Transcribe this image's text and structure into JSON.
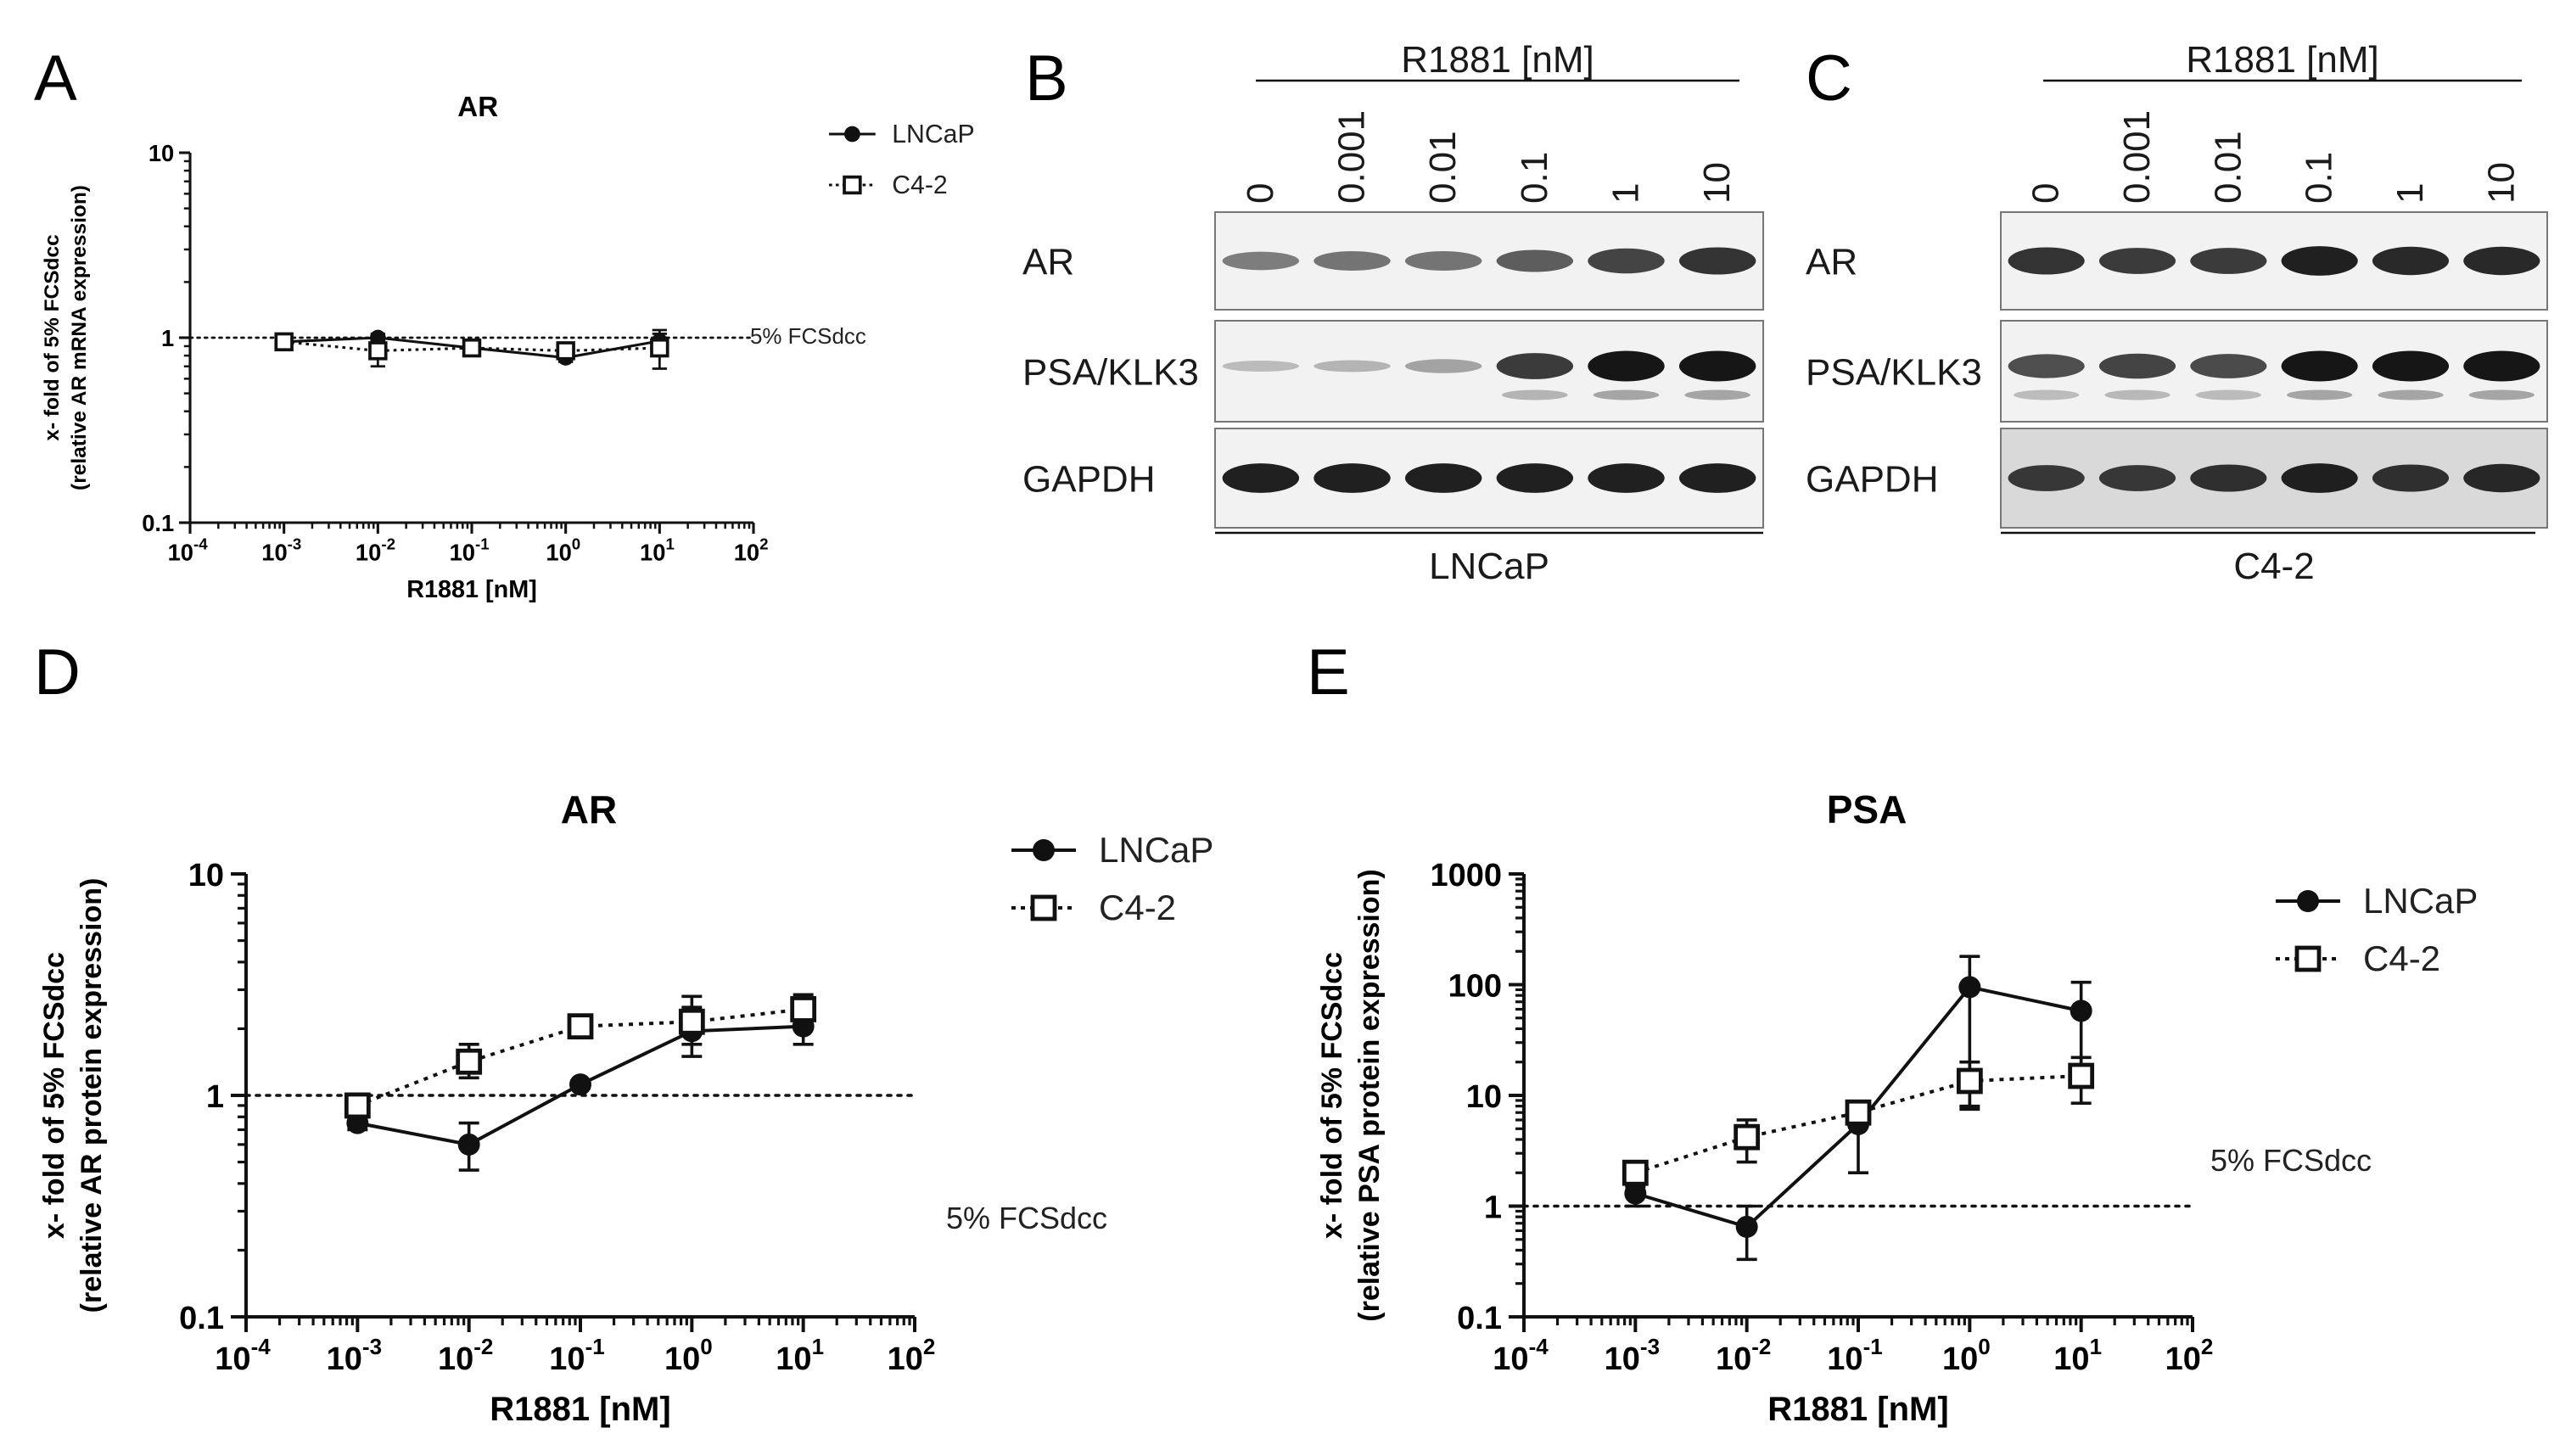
{
  "panel_letters": [
    "A",
    "B",
    "C",
    "D",
    "E"
  ],
  "chart_data": [
    {
      "type": "line",
      "panel": "A",
      "title": "AR",
      "xlabel": "R1881 [nM]",
      "ylabel_lines": [
        "x- fold of 5% FCSdcc",
        "(relative AR mRNA expression)"
      ],
      "xscale": "log",
      "yscale": "log",
      "xlim": [
        0.0001,
        100
      ],
      "ylim": [
        0.1,
        10
      ],
      "x_tick_base": "10",
      "x_tick_exponents": [
        "-4",
        "-3",
        "-2",
        "-1",
        "0",
        "1",
        "2"
      ],
      "y_tick_labels": [
        "0.1",
        "1",
        "10"
      ],
      "reference_line": {
        "y": 1,
        "label": "5% FCSdcc"
      },
      "x": [
        0.001,
        0.01,
        0.1,
        1,
        10
      ],
      "series": [
        {
          "name": "LNCaP",
          "marker": "filled-circle",
          "line": "solid",
          "values": [
            0.95,
            1.0,
            0.88,
            0.78,
            0.96
          ],
          "err_low": [
            0.88,
            0.95,
            0.84,
            0.74,
            0.86
          ],
          "err_high": [
            1.02,
            1.05,
            0.92,
            0.82,
            1.1
          ]
        },
        {
          "name": "C4-2",
          "marker": "open-square",
          "line": "dotted",
          "values": [
            0.95,
            0.85,
            0.88,
            0.85,
            0.88
          ],
          "err_low": [
            0.9,
            0.7,
            0.84,
            0.78,
            0.68
          ],
          "err_high": [
            1.0,
            0.98,
            0.92,
            0.9,
            1.05
          ]
        }
      ]
    },
    {
      "type": "line",
      "panel": "D",
      "title": "AR",
      "xlabel": "R1881 [nM]",
      "ylabel_lines": [
        "x- fold of 5% FCSdcc",
        "(relative AR protein expression)"
      ],
      "xscale": "log",
      "yscale": "log",
      "xlim": [
        0.0001,
        100
      ],
      "ylim": [
        0.1,
        10
      ],
      "x_tick_base": "10",
      "x_tick_exponents": [
        "-4",
        "-3",
        "-2",
        "-1",
        "0",
        "1",
        "2"
      ],
      "y_tick_labels": [
        "0.1",
        "1",
        "10"
      ],
      "reference_line": {
        "y": 1,
        "label": "5% FCSdcc"
      },
      "x": [
        0.001,
        0.01,
        0.1,
        1,
        10
      ],
      "series": [
        {
          "name": "LNCaP",
          "marker": "filled-circle",
          "line": "solid",
          "values": [
            0.75,
            0.6,
            1.12,
            1.95,
            2.05
          ],
          "err_low": [
            0.7,
            0.46,
            1.08,
            1.5,
            1.7
          ],
          "err_high": [
            0.8,
            0.75,
            1.16,
            2.5,
            2.4
          ]
        },
        {
          "name": "C4-2",
          "marker": "open-square",
          "line": "dotted",
          "values": [
            0.9,
            1.42,
            2.05,
            2.15,
            2.45
          ],
          "err_low": [
            0.85,
            1.2,
            1.9,
            1.7,
            2.15
          ],
          "err_high": [
            0.95,
            1.7,
            2.2,
            2.8,
            2.85
          ]
        }
      ]
    },
    {
      "type": "line",
      "panel": "E",
      "title": "PSA",
      "xlabel": "R1881 [nM]",
      "ylabel_lines": [
        "x- fold of 5% FCSdcc",
        "(relative PSA protein expression)"
      ],
      "xscale": "log",
      "yscale": "log",
      "xlim": [
        0.0001,
        100
      ],
      "ylim": [
        0.1,
        1000
      ],
      "x_tick_base": "10",
      "x_tick_exponents": [
        "-4",
        "-3",
        "-2",
        "-1",
        "0",
        "1",
        "2"
      ],
      "y_tick_labels": [
        "0.1",
        "1",
        "10",
        "100",
        "1000"
      ],
      "reference_line": {
        "y": 1,
        "label": "5% FCSdcc"
      },
      "x": [
        0.001,
        0.01,
        0.1,
        1,
        10
      ],
      "series": [
        {
          "name": "LNCaP",
          "marker": "filled-circle",
          "line": "solid",
          "values": [
            1.3,
            0.65,
            5.5,
            95,
            58
          ],
          "err_low": [
            1.0,
            0.33,
            2.0,
            8,
            14
          ],
          "err_high": [
            1.6,
            1.0,
            8.5,
            180,
            105
          ]
        },
        {
          "name": "C4-2",
          "marker": "open-square",
          "line": "dotted",
          "values": [
            2.0,
            4.2,
            7.0,
            13.5,
            15.0
          ],
          "err_low": [
            1.5,
            2.5,
            5.5,
            7.5,
            8.5
          ],
          "err_high": [
            2.5,
            6.0,
            8.5,
            20,
            22
          ]
        }
      ]
    }
  ],
  "blots": [
    {
      "panel": "B",
      "treatment_label": "R1881 [nM]",
      "lanes": [
        "0",
        "0.001",
        "0.01",
        "0.1",
        "1",
        "10"
      ],
      "rows": [
        "AR",
        "PSA/KLK3",
        "GAPDH"
      ],
      "cell_line": "LNCaP",
      "band_intensity": {
        "AR": [
          0.45,
          0.5,
          0.5,
          0.62,
          0.75,
          0.85
        ],
        "PSA/KLK3": [
          0.12,
          0.15,
          0.25,
          0.8,
          1.0,
          1.0
        ],
        "GAPDH": [
          0.95,
          0.95,
          0.95,
          0.95,
          0.95,
          0.95
        ]
      }
    },
    {
      "panel": "C",
      "treatment_label": "R1881 [nM]",
      "lanes": [
        "0",
        "0.001",
        "0.01",
        "0.1",
        "1",
        "10"
      ],
      "rows": [
        "AR",
        "PSA/KLK3",
        "GAPDH"
      ],
      "cell_line": "C4-2",
      "band_intensity": {
        "AR": [
          0.85,
          0.8,
          0.8,
          0.95,
          0.9,
          0.9
        ],
        "PSA/KLK3": [
          0.7,
          0.75,
          0.72,
          1.0,
          1.0,
          1.0
        ],
        "GAPDH": [
          0.8,
          0.8,
          0.85,
          0.95,
          0.85,
          0.9
        ]
      }
    }
  ],
  "colors": {
    "ink": "#111111",
    "blot_bg": "#f2f2f2",
    "blot_bg_dark": "#d9d9d9",
    "band": "#161616"
  }
}
